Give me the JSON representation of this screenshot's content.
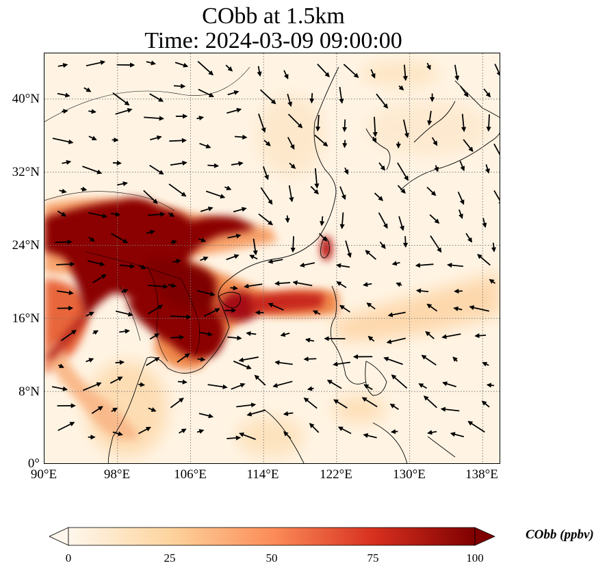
{
  "title": {
    "line1": "CObb at 1.5km",
    "line2": "Time: 2024-03-09 09:00:00"
  },
  "map": {
    "projection": "PlateCarree",
    "lon_range": [
      90,
      140
    ],
    "lat_range": [
      0,
      45
    ],
    "gridlines": "dotted",
    "lat_ticks": [
      "40°N",
      "32°N",
      "24°N",
      "16°N",
      "8°N",
      "0°"
    ],
    "lon_ticks": [
      "90°E",
      "98°E",
      "106°E",
      "114°E",
      "122°E",
      "130°E",
      "138°E"
    ],
    "layers": [
      "coastlines",
      "country-borders",
      "wind-vectors",
      "cobb-concentration"
    ]
  },
  "colorbar": {
    "label": "CObb (ppbv)",
    "ticks": [
      "0",
      "25",
      "50",
      "75",
      "100"
    ],
    "range": [
      0,
      100
    ],
    "extend": "both",
    "colormap": "OrRd",
    "colors": [
      "#fff7ec",
      "#fdd49e",
      "#fc8d59",
      "#d7301f",
      "#7f0000"
    ]
  }
}
